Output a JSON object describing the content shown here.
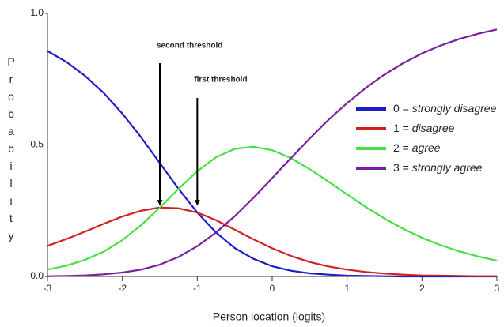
{
  "chart_data": {
    "type": "line",
    "xlabel": "Person location (logits)",
    "ylabel": "Probability",
    "x": [
      -3,
      -2.75,
      -2.5,
      -2.25,
      -2,
      -1.75,
      -1.5,
      -1.25,
      -1,
      -0.75,
      -0.5,
      -0.25,
      0,
      0.25,
      0.5,
      0.75,
      1,
      1.25,
      1.5,
      1.75,
      2,
      2.25,
      2.5,
      2.75,
      3
    ],
    "series": [
      {
        "name": "0 = strongly disagree",
        "color": "#1c1cc8",
        "values": [
          0.857,
          0.816,
          0.763,
          0.698,
          0.619,
          0.529,
          0.431,
          0.333,
          0.243,
          0.167,
          0.108,
          0.067,
          0.039,
          0.022,
          0.012,
          0.007,
          0.003,
          0.002,
          0.001,
          0,
          0,
          0,
          0,
          0,
          0
        ]
      },
      {
        "name": "1 = disagree",
        "color": "#d42020",
        "values": [
          0.116,
          0.142,
          0.17,
          0.2,
          0.228,
          0.25,
          0.262,
          0.259,
          0.243,
          0.214,
          0.178,
          0.141,
          0.107,
          0.078,
          0.055,
          0.038,
          0.026,
          0.017,
          0.011,
          0.007,
          0.004,
          0.003,
          0.002,
          0.001,
          0.001
        ]
      },
      {
        "name": "2 = agree",
        "color": "#44e044",
        "values": [
          0.026,
          0.041,
          0.063,
          0.094,
          0.138,
          0.195,
          0.262,
          0.333,
          0.4,
          0.453,
          0.485,
          0.493,
          0.48,
          0.45,
          0.408,
          0.361,
          0.312,
          0.264,
          0.22,
          0.181,
          0.147,
          0.119,
          0.095,
          0.076,
          0.06
        ]
      },
      {
        "name": "3 = strongly agree",
        "color": "#7a1fa0",
        "values": [
          0.001,
          0.002,
          0.004,
          0.008,
          0.015,
          0.026,
          0.045,
          0.074,
          0.115,
          0.167,
          0.229,
          0.299,
          0.374,
          0.45,
          0.524,
          0.595,
          0.659,
          0.717,
          0.768,
          0.811,
          0.848,
          0.878,
          0.903,
          0.923,
          0.939
        ]
      }
    ],
    "xlim": [
      -3,
      3
    ],
    "xticks": [
      -3,
      -2,
      -1,
      0,
      1,
      2,
      3
    ],
    "ylim": [
      0,
      1
    ],
    "yticks": [
      {
        "value": 0,
        "label": "0.0"
      },
      0.5,
      {
        "value": 1,
        "label": "1.0"
      }
    ],
    "annotations": [
      {
        "text": "second threshold",
        "x": -1.5
      },
      {
        "text": "first threshold",
        "x": -1
      }
    ]
  }
}
